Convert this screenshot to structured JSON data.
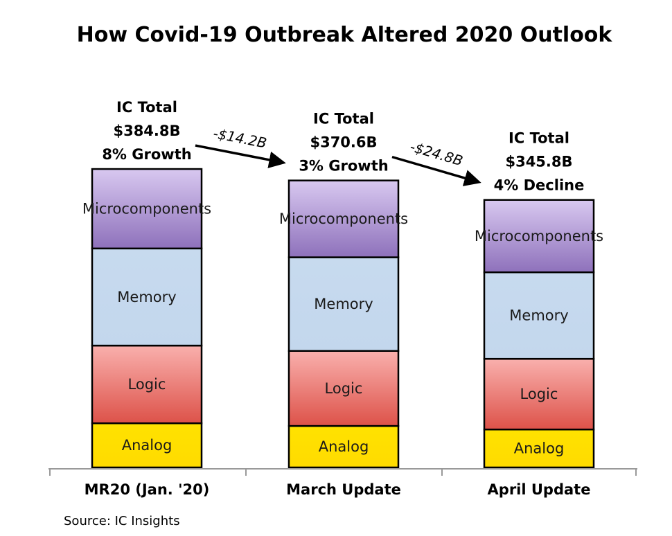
{
  "chart_data": {
    "type": "bar",
    "stacked": true,
    "title": "How Covid-19 Outbreak Altered 2020 Outlook",
    "categories": [
      "MR20 (Jan. '20)",
      "March Update",
      "April Update"
    ],
    "totals": [
      {
        "lines": [
          "IC Total",
          "$384.8B",
          "8% Growth"
        ],
        "value": 384.8
      },
      {
        "lines": [
          "IC Total",
          "$370.6B",
          "3% Growth"
        ],
        "value": 370.6
      },
      {
        "lines": [
          "IC Total",
          "$345.8B",
          "4% Decline"
        ],
        "value": 345.8
      }
    ],
    "series": [
      {
        "name": "Analog",
        "color": "#ffe000",
        "values": [
          50,
          47,
          43
        ]
      },
      {
        "name": "Logic",
        "color": "#e8706a",
        "values": [
          88,
          85,
          80
        ]
      },
      {
        "name": "Memory",
        "color": "#c5d8ee",
        "values": [
          110,
          106,
          98
        ]
      },
      {
        "name": "Microcomponents",
        "color": "#9f85c8",
        "values": [
          90,
          87,
          82
        ]
      }
    ],
    "changes": [
      {
        "label": "-$14.2B",
        "from": 0,
        "to": 1
      },
      {
        "label": "-$24.8B",
        "from": 1,
        "to": 2
      }
    ],
    "ylim": [
      0,
      400
    ],
    "grid": false,
    "legend": "none"
  },
  "source": "Source: IC Insights"
}
